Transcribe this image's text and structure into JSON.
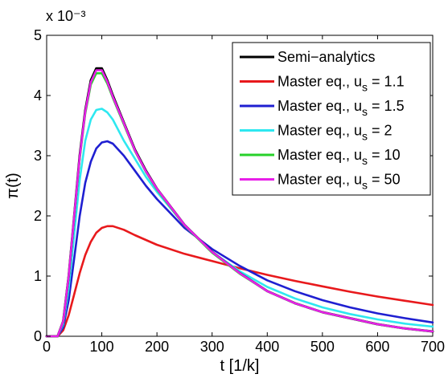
{
  "chart_data": {
    "type": "line",
    "xlabel": "t [1/k]",
    "ylabel": "π(t)",
    "y_exponent_label": "x 10⁻³",
    "xlim": [
      0,
      700
    ],
    "ylim": [
      0,
      5
    ],
    "x_ticks": [
      0,
      100,
      200,
      300,
      400,
      500,
      600,
      700
    ],
    "y_ticks": [
      0,
      1,
      2,
      3,
      4,
      5
    ],
    "grid": false,
    "legend_position": "top-right",
    "series": [
      {
        "name": "Semi−analytics",
        "legend_main": "Semi−analytics",
        "legend_sub": "",
        "legend_tail": "",
        "color": "#000000",
        "x": [
          0,
          20,
          30,
          40,
          50,
          60,
          70,
          80,
          90,
          100,
          110,
          120,
          140,
          160,
          180,
          200,
          250,
          300,
          350,
          400,
          450,
          500,
          550,
          600,
          650,
          700
        ],
        "y": [
          0,
          0,
          0.25,
          1.0,
          2.0,
          3.0,
          3.75,
          4.25,
          4.45,
          4.45,
          4.25,
          4.0,
          3.55,
          3.1,
          2.75,
          2.45,
          1.85,
          1.4,
          1.05,
          0.75,
          0.55,
          0.4,
          0.3,
          0.2,
          0.13,
          0.08
        ]
      },
      {
        "name": "Master eq., us = 1.1",
        "legend_main": "Master eq., u",
        "legend_sub": "s",
        "legend_tail": " = 1.1",
        "color": "#e8191c",
        "x": [
          0,
          20,
          30,
          40,
          50,
          60,
          70,
          80,
          90,
          100,
          110,
          120,
          140,
          160,
          180,
          200,
          250,
          300,
          350,
          400,
          450,
          500,
          550,
          600,
          650,
          700
        ],
        "y": [
          0,
          0,
          0.1,
          0.35,
          0.7,
          1.05,
          1.35,
          1.57,
          1.72,
          1.8,
          1.83,
          1.83,
          1.77,
          1.68,
          1.6,
          1.52,
          1.37,
          1.25,
          1.13,
          1.02,
          0.92,
          0.83,
          0.74,
          0.66,
          0.59,
          0.52
        ]
      },
      {
        "name": "Master eq., us = 1.5",
        "legend_main": "Master eq., u",
        "legend_sub": "s",
        "legend_tail": " = 1.5",
        "color": "#1f1fd1",
        "x": [
          0,
          20,
          30,
          40,
          50,
          60,
          70,
          80,
          90,
          100,
          110,
          120,
          140,
          160,
          180,
          200,
          250,
          300,
          350,
          400,
          450,
          500,
          550,
          600,
          650,
          700
        ],
        "y": [
          0,
          0,
          0.15,
          0.6,
          1.3,
          2.0,
          2.55,
          2.9,
          3.12,
          3.22,
          3.24,
          3.2,
          3.0,
          2.75,
          2.5,
          2.28,
          1.8,
          1.45,
          1.17,
          0.93,
          0.75,
          0.6,
          0.48,
          0.38,
          0.3,
          0.23
        ]
      },
      {
        "name": "Master eq., us = 2",
        "legend_main": "Master eq., u",
        "legend_sub": "s",
        "legend_tail": " = 2",
        "color": "#2ee8f0",
        "x": [
          0,
          20,
          30,
          40,
          50,
          60,
          70,
          80,
          90,
          100,
          110,
          120,
          140,
          160,
          180,
          200,
          250,
          300,
          350,
          400,
          450,
          500,
          550,
          600,
          650,
          700
        ],
        "y": [
          0,
          0,
          0.2,
          0.8,
          1.7,
          2.6,
          3.25,
          3.6,
          3.76,
          3.78,
          3.72,
          3.6,
          3.25,
          2.95,
          2.65,
          2.4,
          1.85,
          1.4,
          1.08,
          0.82,
          0.63,
          0.48,
          0.37,
          0.28,
          0.21,
          0.16
        ]
      },
      {
        "name": "Master eq., us = 10",
        "legend_main": "Master eq., u",
        "legend_sub": "s",
        "legend_tail": " = 10",
        "color": "#27d12a",
        "x": [
          0,
          20,
          30,
          40,
          50,
          60,
          70,
          80,
          90,
          100,
          110,
          120,
          140,
          160,
          180,
          200,
          250,
          300,
          350,
          400,
          450,
          500,
          550,
          600,
          650,
          700
        ],
        "y": [
          0,
          0,
          0.25,
          1.0,
          1.98,
          2.95,
          3.7,
          4.18,
          4.37,
          4.37,
          4.2,
          3.96,
          3.52,
          3.08,
          2.73,
          2.44,
          1.84,
          1.39,
          1.04,
          0.75,
          0.55,
          0.4,
          0.3,
          0.2,
          0.13,
          0.08
        ]
      },
      {
        "name": "Master eq., us = 50",
        "legend_main": "Master eq., u",
        "legend_sub": "s",
        "legend_tail": " = 50",
        "color": "#e81fe8",
        "x": [
          0,
          20,
          30,
          40,
          50,
          60,
          70,
          80,
          90,
          100,
          110,
          120,
          140,
          160,
          180,
          200,
          250,
          300,
          350,
          400,
          450,
          500,
          550,
          600,
          650,
          700
        ],
        "y": [
          0,
          0,
          0.25,
          1.0,
          2.0,
          2.98,
          3.73,
          4.22,
          4.42,
          4.42,
          4.23,
          3.98,
          3.54,
          3.09,
          2.74,
          2.45,
          1.85,
          1.4,
          1.05,
          0.75,
          0.55,
          0.4,
          0.3,
          0.2,
          0.13,
          0.08
        ]
      }
    ]
  }
}
